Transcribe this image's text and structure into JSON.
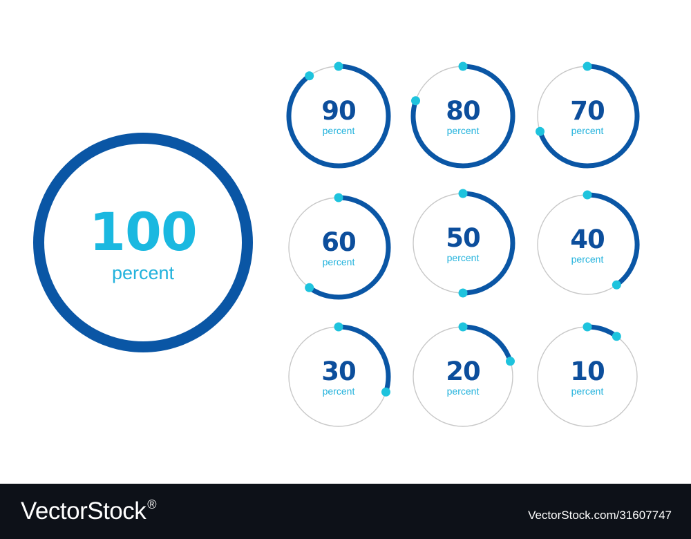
{
  "colors": {
    "ring": "#0a56a5",
    "track": "#c8c8c8",
    "dot": "#1ec3dd",
    "big_value": "#1ab8e0",
    "small_value": "#0c4e9c",
    "unit": "#22b2dc",
    "footer_bg": "#0d1118",
    "footer_text": "#ffffff"
  },
  "gauges": [
    {
      "value": "100",
      "unit": "percent",
      "percent": 100
    },
    {
      "value": "90",
      "unit": "percent",
      "percent": 90
    },
    {
      "value": "80",
      "unit": "percent",
      "percent": 80
    },
    {
      "value": "70",
      "unit": "percent",
      "percent": 70
    },
    {
      "value": "60",
      "unit": "percent",
      "percent": 60
    },
    {
      "value": "50",
      "unit": "percent",
      "percent": 50
    },
    {
      "value": "40",
      "unit": "percent",
      "percent": 40
    },
    {
      "value": "30",
      "unit": "percent",
      "percent": 30
    },
    {
      "value": "20",
      "unit": "percent",
      "percent": 20
    },
    {
      "value": "10",
      "unit": "percent",
      "percent": 10
    }
  ],
  "footer": {
    "brand": "VectorStock",
    "reg_mark": "®",
    "url": "VectorStock.com/31607747"
  }
}
